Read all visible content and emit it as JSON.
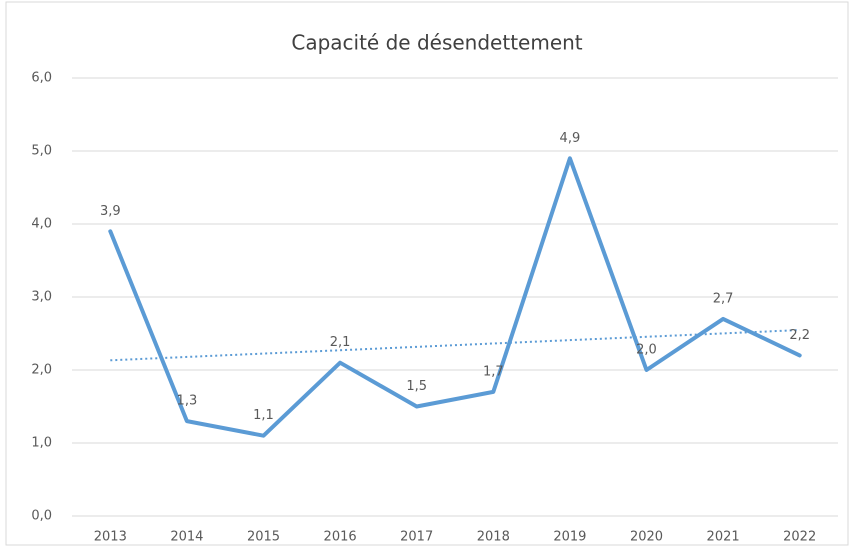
{
  "chart_data": {
    "type": "line",
    "title": "Capacité de désendettement",
    "categories": [
      "2013",
      "2014",
      "2015",
      "2016",
      "2017",
      "2018",
      "2019",
      "2020",
      "2021",
      "2022"
    ],
    "values": [
      3.9,
      1.3,
      1.1,
      2.1,
      1.5,
      1.7,
      4.9,
      2.0,
      2.7,
      2.2
    ],
    "value_labels": [
      "3,9",
      "1,3",
      "1,1",
      "2,1",
      "1,5",
      "1,7",
      "4,9",
      "2,0",
      "2,7",
      "2,2"
    ],
    "color": "#5b9bd5",
    "ylim": [
      0,
      6
    ],
    "yticks": [
      {
        "value": 0,
        "label": "0,0"
      },
      {
        "value": 1,
        "label": "1,0"
      },
      {
        "value": 2,
        "label": "2,0"
      },
      {
        "value": 3,
        "label": "3,0"
      },
      {
        "value": 4,
        "label": "4,0"
      },
      {
        "value": 5,
        "label": "5,0"
      },
      {
        "value": 6,
        "label": "6,0"
      }
    ],
    "grid": true,
    "trendline": "linear"
  }
}
